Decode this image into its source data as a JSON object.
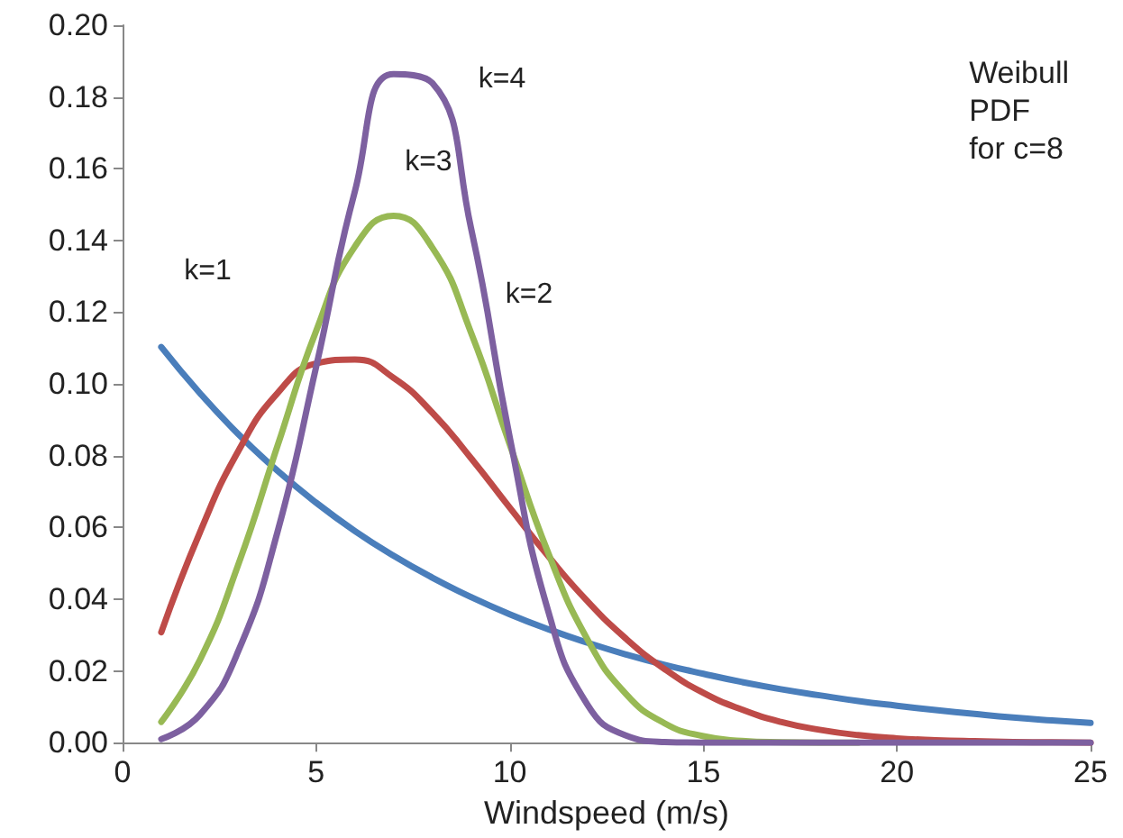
{
  "chart_data": {
    "type": "line",
    "xlabel": "Windspeed (m/s)",
    "x": [
      1,
      2,
      3,
      4,
      5,
      6,
      7,
      8,
      9,
      10,
      11,
      12,
      13,
      14,
      15,
      16,
      17,
      18,
      19,
      20,
      21,
      22,
      23,
      24,
      25
    ],
    "series": [
      {
        "color": "#4a7ebb",
        "values": [
          0.1103,
          0.0974,
          0.0859,
          0.0758,
          0.0669,
          0.059,
          0.0521,
          0.046,
          0.0406,
          0.0358,
          0.0316,
          0.0279,
          0.0246,
          0.0217,
          0.0192,
          0.0169,
          0.0149,
          0.0132,
          0.0116,
          0.0103,
          0.0091,
          0.008,
          0.007,
          0.0062,
          0.0055
        ]
      },
      {
        "color": "#be4b48",
        "values": [
          0.0308,
          0.0587,
          0.0815,
          0.0974,
          0.1057,
          0.1068,
          0.1017,
          0.092,
          0.0793,
          0.0655,
          0.0519,
          0.0395,
          0.029,
          0.0205,
          0.0139,
          0.0092,
          0.0058,
          0.0036,
          0.0021,
          0.0012,
          0.0007,
          0.0004,
          0.0002,
          0.0001,
          0.0
        ]
      },
      {
        "color": "#98b954",
        "values": [
          0.0058,
          0.0231,
          0.05,
          0.0827,
          0.1148,
          0.1383,
          0.1469,
          0.138,
          0.1143,
          0.0831,
          0.0527,
          0.0289,
          0.0136,
          0.0054,
          0.0018,
          0.0005,
          0.0001,
          0,
          0,
          null,
          null,
          null,
          null,
          null,
          null
        ]
      },
      {
        "color": "#7d60a0",
        "values": [
          0.001,
          0.0078,
          0.0258,
          0.0587,
          0.1048,
          0.1537,
          0.1864,
          0.1839,
          0.1434,
          0.0851,
          0.0364,
          0.0107,
          0.002,
          0.0002,
          0,
          0,
          0,
          0,
          0,
          0,
          0,
          0,
          0,
          0,
          0
        ]
      }
    ],
    "xlim": [
      0,
      25
    ],
    "xticks": [
      0,
      5,
      10,
      15,
      20,
      25
    ],
    "ylim": [
      0,
      0.2
    ],
    "yticks": [
      {
        "value": 0,
        "label": "0.00"
      },
      {
        "value": 0.02,
        "label": "0.02"
      },
      {
        "value": 0.04,
        "label": "0.04"
      },
      {
        "value": 0.06,
        "label": "0.06"
      },
      {
        "value": 0.08,
        "label": "0.08"
      },
      {
        "value": 0.1,
        "label": "0.10"
      },
      {
        "value": 0.12,
        "label": "0.12"
      },
      {
        "value": 0.14,
        "label": "0.14"
      },
      {
        "value": 0.16,
        "label": "0.16"
      },
      {
        "value": 0.18,
        "label": "0.18"
      },
      {
        "value": 0.2,
        "label": "0.20"
      }
    ],
    "annotations": [
      "k=1",
      "k=2",
      "k=3",
      "k=4",
      "Weibull\nPDF\nfor c=8"
    ],
    "grid": false,
    "marker": "none",
    "line_style": "solid"
  }
}
